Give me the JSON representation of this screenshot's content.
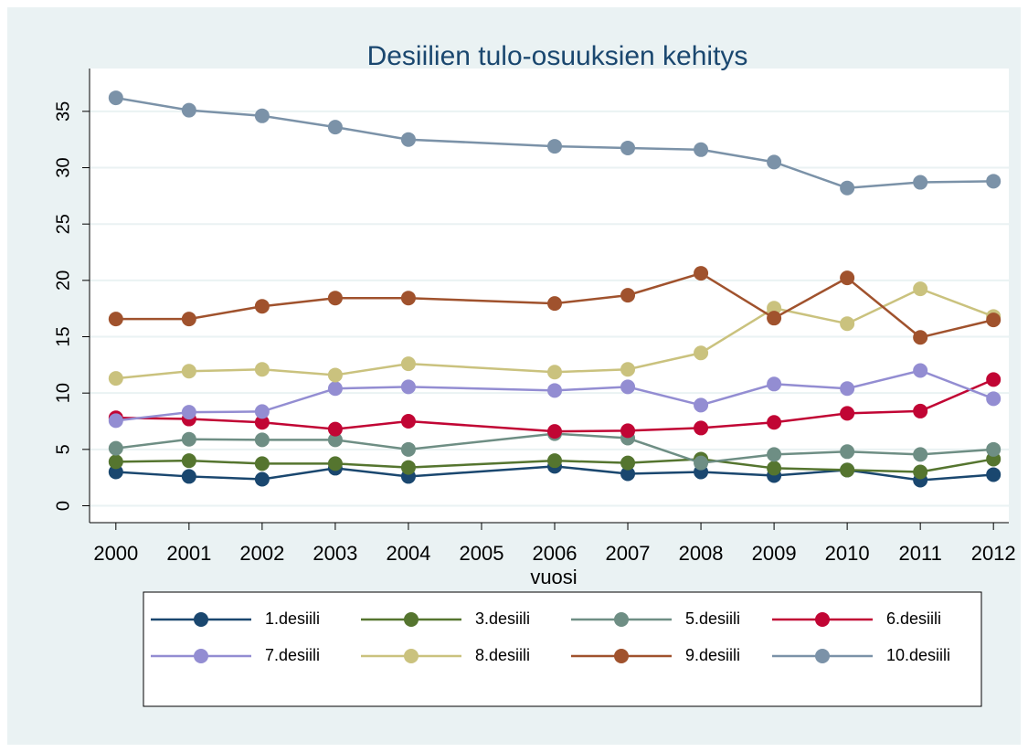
{
  "chart_data": {
    "type": "line",
    "title": "Desiilien tulo-osuuksien kehitys",
    "x_label": "vuosi",
    "x": [
      2000,
      2001,
      2002,
      2003,
      2004,
      2006,
      2007,
      2008,
      2009,
      2010,
      2011,
      2012
    ],
    "xlim": [
      1999.64,
      2012.21
    ],
    "xticks": [
      2000,
      2001,
      2002,
      2003,
      2004,
      2005,
      2006,
      2007,
      2008,
      2009,
      2010,
      2011,
      2012
    ],
    "ylim": [
      -1.5,
      38.8
    ],
    "yticks": [
      0,
      5,
      10,
      15,
      20,
      25,
      30,
      35
    ],
    "grid": true,
    "series": [
      {
        "name": "1.desiili",
        "color": "#1a476f",
        "values": [
          3.0,
          2.6,
          2.35,
          3.33,
          2.6,
          3.5,
          2.84,
          3.0,
          2.68,
          3.17,
          2.27,
          2.76
        ]
      },
      {
        "name": "3.desiili",
        "color": "#55752f",
        "values": [
          3.9,
          4.0,
          3.74,
          3.74,
          3.4,
          4.0,
          3.8,
          4.14,
          3.33,
          3.17,
          3.0,
          4.14
        ]
      },
      {
        "name": "5.desiili",
        "color": "#6e8e84",
        "values": [
          5.1,
          5.9,
          5.85,
          5.85,
          5.0,
          6.4,
          6.0,
          3.8,
          4.55,
          4.8,
          4.55,
          5.0
        ]
      },
      {
        "name": "6.desiili",
        "color": "#c10534",
        "values": [
          7.8,
          7.7,
          7.4,
          6.8,
          7.5,
          6.6,
          6.66,
          6.9,
          7.4,
          8.2,
          8.4,
          11.2
        ]
      },
      {
        "name": "7.desiili",
        "color": "#938dd2",
        "values": [
          7.55,
          8.3,
          8.36,
          10.4,
          10.55,
          10.23,
          10.55,
          8.93,
          10.8,
          10.4,
          12.0,
          9.5
        ]
      },
      {
        "name": "8.desiili",
        "color": "#cac27e",
        "values": [
          11.3,
          11.94,
          12.1,
          11.6,
          12.6,
          11.86,
          12.1,
          13.56,
          17.54,
          16.16,
          19.25,
          16.8
        ]
      },
      {
        "name": "9.desiili",
        "color": "#a0522d",
        "values": [
          16.57,
          16.57,
          17.7,
          18.43,
          18.43,
          17.95,
          18.68,
          20.63,
          16.65,
          20.22,
          14.94,
          16.49
        ]
      },
      {
        "name": "10.desiili",
        "color": "#7b92a8",
        "values": [
          36.2,
          35.1,
          34.6,
          33.6,
          32.5,
          31.9,
          31.75,
          31.6,
          30.5,
          28.2,
          28.7,
          28.8
        ]
      }
    ]
  }
}
